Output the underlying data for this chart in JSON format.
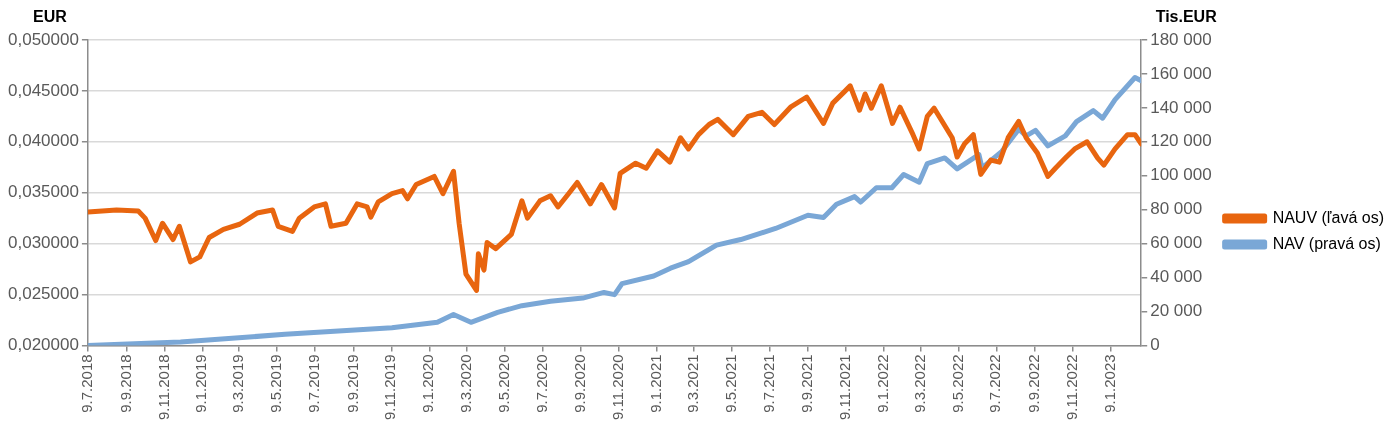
{
  "chart_data": {
    "type": "line",
    "ylabel": "EUR",
    "y2label": "Tis.EUR",
    "grid": "y",
    "legend": "right",
    "marker": "none",
    "line_style": "solid",
    "xlim": [
      "2018-07-09",
      "2023-02-27"
    ],
    "xticks": [
      {
        "value": "2018-07-09",
        "label": "9.7.2018"
      },
      {
        "value": "2018-09-09",
        "label": "9.9.2018"
      },
      {
        "value": "2018-11-09",
        "label": "9.11.2018"
      },
      {
        "value": "2019-01-09",
        "label": "9.1.2019"
      },
      {
        "value": "2019-03-09",
        "label": "9.3.2019"
      },
      {
        "value": "2019-05-09",
        "label": "9.5.2019"
      },
      {
        "value": "2019-07-09",
        "label": "9.7.2019"
      },
      {
        "value": "2019-09-09",
        "label": "9.9.2019"
      },
      {
        "value": "2019-11-09",
        "label": "9.11.2019"
      },
      {
        "value": "2020-01-09",
        "label": "9.1.2020"
      },
      {
        "value": "2020-03-09",
        "label": "9.3.2020"
      },
      {
        "value": "2020-05-09",
        "label": "9.5.2020"
      },
      {
        "value": "2020-07-09",
        "label": "9.7.2020"
      },
      {
        "value": "2020-09-09",
        "label": "9.9.2020"
      },
      {
        "value": "2020-11-09",
        "label": "9.11.2020"
      },
      {
        "value": "2021-01-09",
        "label": "9.1.2021"
      },
      {
        "value": "2021-03-09",
        "label": "9.3.2021"
      },
      {
        "value": "2021-05-09",
        "label": "9.5.2021"
      },
      {
        "value": "2021-07-09",
        "label": "9.7.2021"
      },
      {
        "value": "2021-09-09",
        "label": "9.9.2021"
      },
      {
        "value": "2021-11-09",
        "label": "9.11.2021"
      },
      {
        "value": "2022-01-09",
        "label": "9.1.2022"
      },
      {
        "value": "2022-03-09",
        "label": "9.3.2022"
      },
      {
        "value": "2022-05-09",
        "label": "9.5.2022"
      },
      {
        "value": "2022-07-09",
        "label": "9.7.2022"
      },
      {
        "value": "2022-09-09",
        "label": "9.9.2022"
      },
      {
        "value": "2022-11-09",
        "label": "9.11.2022"
      },
      {
        "value": "2023-01-09",
        "label": "9.1.2023"
      }
    ],
    "ylim": [
      0.02,
      0.05
    ],
    "yticks": [
      {
        "value": 0.02,
        "label": "0,020000"
      },
      {
        "value": 0.025,
        "label": "0,025000"
      },
      {
        "value": 0.03,
        "label": "0,030000"
      },
      {
        "value": 0.035,
        "label": "0,035000"
      },
      {
        "value": 0.04,
        "label": "0,040000"
      },
      {
        "value": 0.045,
        "label": "0,045000"
      },
      {
        "value": 0.05,
        "label": "0,050000"
      }
    ],
    "y2lim": [
      0,
      180000
    ],
    "y2ticks": [
      {
        "value": 0,
        "label": "0"
      },
      {
        "value": 20000,
        "label": "20 000"
      },
      {
        "value": 40000,
        "label": "40 000"
      },
      {
        "value": 60000,
        "label": "60 000"
      },
      {
        "value": 80000,
        "label": "80 000"
      },
      {
        "value": 100000,
        "label": "100 000"
      },
      {
        "value": 120000,
        "label": "120 000"
      },
      {
        "value": 140000,
        "label": "140 000"
      },
      {
        "value": 160000,
        "label": "160 000"
      },
      {
        "value": 180000,
        "label": "180 000"
      }
    ],
    "series": [
      {
        "name": "NAUV (ľavá os)",
        "color": "#e8650f",
        "x": [
          "2018-07-09",
          "2018-08-24",
          "2018-09-28",
          "2018-10-09",
          "2018-10-26",
          "2018-11-06",
          "2018-11-23",
          "2018-12-03",
          "2018-12-21",
          "2019-01-05",
          "2019-01-20",
          "2019-02-12",
          "2019-03-10",
          "2019-04-07",
          "2019-05-02",
          "2019-05-11",
          "2019-06-03",
          "2019-06-14",
          "2019-07-08",
          "2019-07-26",
          "2019-08-04",
          "2019-08-28",
          "2019-09-15",
          "2019-10-01",
          "2019-10-07",
          "2019-10-19",
          "2019-11-10",
          "2019-11-27",
          "2019-12-05",
          "2019-12-19",
          "2020-01-17",
          "2020-01-31",
          "2020-02-17",
          "2020-02-26",
          "2020-03-08",
          "2020-03-25",
          "2020-03-28",
          "2020-04-06",
          "2020-04-11",
          "2020-04-25",
          "2020-05-20",
          "2020-06-06",
          "2020-06-15",
          "2020-07-05",
          "2020-07-22",
          "2020-08-03",
          "2020-08-20",
          "2020-09-03",
          "2020-09-24",
          "2020-10-12",
          "2020-11-02",
          "2020-11-11",
          "2020-12-06",
          "2020-12-23",
          "2021-01-10",
          "2021-01-30",
          "2021-02-16",
          "2021-03-01",
          "2021-03-17",
          "2021-04-03",
          "2021-04-17",
          "2021-05-12",
          "2021-06-05",
          "2021-06-27",
          "2021-07-17",
          "2021-08-12",
          "2021-09-07",
          "2021-10-04",
          "2021-10-19",
          "2021-11-08",
          "2021-11-16",
          "2021-12-01",
          "2021-12-10",
          "2021-12-20",
          "2022-01-05",
          "2022-01-23",
          "2022-02-04",
          "2022-02-25",
          "2022-03-07",
          "2022-03-20",
          "2022-03-31",
          "2022-04-15",
          "2022-04-29",
          "2022-05-07",
          "2022-05-19",
          "2022-06-02",
          "2022-06-14",
          "2022-06-30",
          "2022-07-14",
          "2022-07-28",
          "2022-08-14",
          "2022-08-26",
          "2022-09-13",
          "2022-09-30",
          "2022-10-12",
          "2022-10-28",
          "2022-11-12",
          "2022-12-02",
          "2022-12-19",
          "2022-12-29",
          "2023-01-16",
          "2023-02-05",
          "2023-02-17",
          "2023-02-27"
        ],
        "values": [
          0.0331,
          0.0333,
          0.0332,
          0.0325,
          0.0303,
          0.032,
          0.0304,
          0.0317,
          0.0282,
          0.0287,
          0.0306,
          0.0314,
          0.0319,
          0.033,
          0.0333,
          0.0317,
          0.0312,
          0.0325,
          0.0336,
          0.0339,
          0.0317,
          0.032,
          0.0339,
          0.0336,
          0.0326,
          0.0341,
          0.0349,
          0.0352,
          0.0344,
          0.0358,
          0.0366,
          0.0349,
          0.0371,
          0.032,
          0.027,
          0.0254,
          0.029,
          0.0274,
          0.0301,
          0.0295,
          0.0309,
          0.0342,
          0.0325,
          0.0342,
          0.0347,
          0.0336,
          0.0349,
          0.036,
          0.0339,
          0.0358,
          0.0335,
          0.0369,
          0.0379,
          0.0374,
          0.0391,
          0.038,
          0.0404,
          0.0393,
          0.0407,
          0.0417,
          0.0422,
          0.0407,
          0.0425,
          0.0429,
          0.0417,
          0.0434,
          0.0444,
          0.0418,
          0.0438,
          0.045,
          0.0455,
          0.0431,
          0.0447,
          0.0433,
          0.0455,
          0.0418,
          0.0434,
          0.0407,
          0.0393,
          0.0425,
          0.0433,
          0.0418,
          0.0404,
          0.0385,
          0.0398,
          0.0407,
          0.0368,
          0.0382,
          0.038,
          0.0404,
          0.042,
          0.0404,
          0.0389,
          0.0366,
          0.0374,
          0.0384,
          0.0393,
          0.04,
          0.0384,
          0.0377,
          0.0393,
          0.0407,
          0.0407,
          0.0398
        ]
      },
      {
        "name": "NAV (pravá os)",
        "color": "#7aa7d6",
        "axis": "y2",
        "x": [
          "2018-07-09",
          "2018-12-05",
          "2019-05-22",
          "2019-11-10",
          "2020-01-22",
          "2020-02-17",
          "2020-03-16",
          "2020-04-28",
          "2020-06-06",
          "2020-07-22",
          "2020-09-12",
          "2020-10-16",
          "2020-11-02",
          "2020-11-14",
          "2021-01-04",
          "2021-01-31",
          "2021-03-01",
          "2021-04-15",
          "2021-05-24",
          "2021-07-19",
          "2021-09-09",
          "2021-10-04",
          "2021-10-25",
          "2021-11-23",
          "2021-12-03",
          "2021-12-28",
          "2022-01-22",
          "2022-02-10",
          "2022-03-07",
          "2022-03-20",
          "2022-04-17",
          "2022-05-07",
          "2022-06-11",
          "2022-06-16",
          "2022-07-18",
          "2022-08-14",
          "2022-08-26",
          "2022-09-10",
          "2022-09-30",
          "2022-10-28",
          "2022-11-15",
          "2022-12-12",
          "2022-12-27",
          "2023-01-16",
          "2023-02-17",
          "2023-02-27"
        ],
        "values": [
          0,
          2000,
          6500,
          10400,
          13600,
          18200,
          13600,
          19500,
          23400,
          26000,
          27900,
          31200,
          29900,
          36400,
          40900,
          45500,
          49400,
          59100,
          62400,
          68900,
          76700,
          75400,
          83200,
          87700,
          84500,
          92900,
          92900,
          100700,
          96200,
          107200,
          110500,
          104000,
          112400,
          104600,
          114400,
          127400,
          123500,
          126700,
          117600,
          123500,
          131900,
          138400,
          133900,
          144900,
          157900,
          156000
        ]
      }
    ]
  }
}
